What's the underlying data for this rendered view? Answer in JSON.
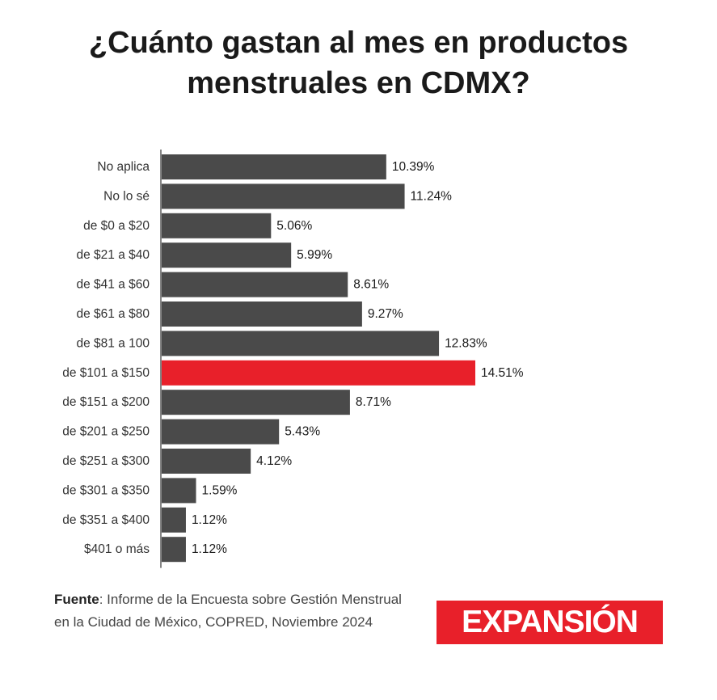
{
  "header": {
    "title_line1": "¿Cuánto gastan al mes en productos",
    "title_line2": "menstruales en CDMX?"
  },
  "chart_data": {
    "type": "bar",
    "orientation": "horizontal",
    "title": "¿Cuánto gastan al mes en productos menstruales en CDMX?",
    "categories": [
      "No aplica",
      "No lo sé",
      "de $0 a $20",
      "de $21 a $40",
      "de $41 a $60",
      "de $61 a $80",
      "de $81 a 100",
      "de $101 a $150",
      "de $151 a $200",
      "de $201 a $250",
      "de $251 a $300",
      "de $301 a $350",
      "de $351 a $400",
      "$401 o más"
    ],
    "values": [
      10.39,
      11.24,
      5.06,
      5.99,
      8.61,
      9.27,
      12.83,
      14.51,
      8.71,
      5.43,
      4.12,
      1.59,
      1.12,
      1.12
    ],
    "value_labels": [
      "10.39%",
      "11.24%",
      "5.06%",
      "5.99%",
      "8.61%",
      "9.27%",
      "12.83%",
      "14.51%",
      "8.71%",
      "5.43%",
      "4.12%",
      "1.59%",
      "1.12%",
      "1.12%"
    ],
    "highlight_index": 7,
    "xlim": [
      0,
      14.51
    ],
    "grid": false,
    "colors": {
      "default": "#4a4a4a",
      "highlight": "#e8202a",
      "axis": "#333333"
    }
  },
  "footer": {
    "source_label": "Fuente",
    "source_text": ": Informe de la Encuesta sobre Gestión Menstrual en la Ciudad de México, COPRED, Noviembre 2024"
  },
  "logo": {
    "text": "EXPANSIÓN",
    "background": "#e8202a"
  }
}
